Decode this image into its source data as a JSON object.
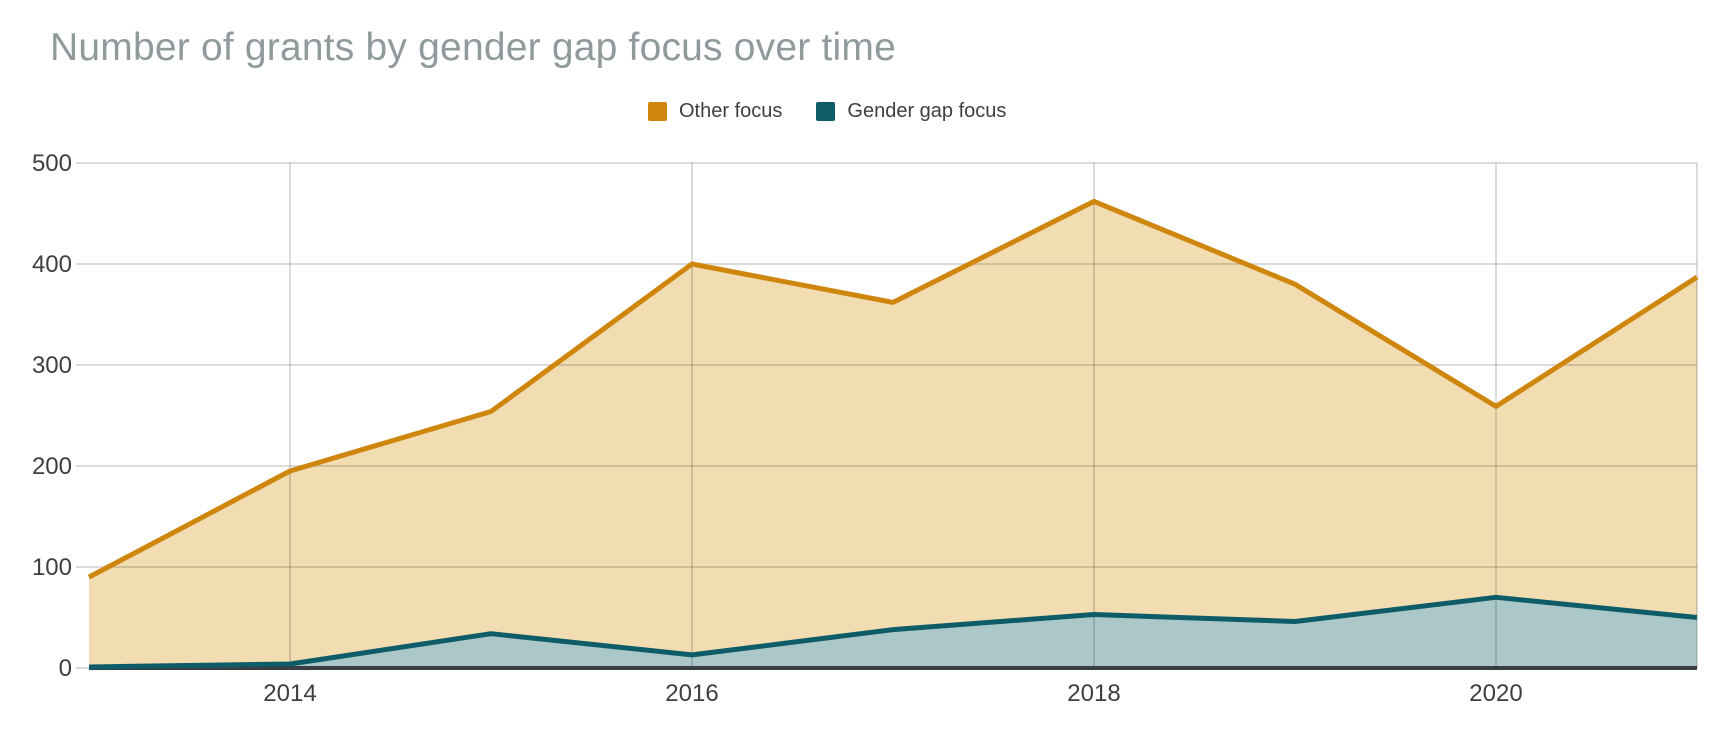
{
  "title": "Number of grants by gender gap focus over time",
  "colors": {
    "title_text": "#909A9C",
    "tick_label_text": "#3C4043",
    "legend_text": "#3C4043",
    "axis_line": "#383E42",
    "gridline": "#DADADA",
    "other_focus_line": "#CE860D",
    "other_focus_fill": "#F2DCB2",
    "gender_gap_line": "#0E5C68",
    "gender_gap_fill": "#ABC7C8"
  },
  "legend": [
    {
      "label": "Other focus",
      "color": "#CE860D"
    },
    {
      "label": "Gender gap focus",
      "color": "#0E5C68"
    }
  ],
  "chart_data": {
    "type": "area",
    "title": "Number of grants by gender gap focus over time",
    "xlabel": "",
    "ylabel": "",
    "x": [
      2013,
      2014,
      2015,
      2016,
      2017,
      2018,
      2019,
      2020,
      2021
    ],
    "series": [
      {
        "name": "Other focus",
        "values": [
          90,
          195,
          254,
          400,
          362,
          462,
          380,
          259,
          387
        ],
        "line_color": "#CE860D",
        "fill_color": "#F2DCB2"
      },
      {
        "name": "Gender gap focus",
        "values": [
          1,
          4,
          34,
          13,
          38,
          53,
          46,
          70,
          50
        ],
        "line_color": "#0E5C68",
        "fill_color": "#ABC7C8"
      }
    ],
    "xlim": [
      2013,
      2021
    ],
    "ylim": [
      0,
      500
    ],
    "xtick_labels": [
      "2014",
      "2016",
      "2018",
      "2020"
    ],
    "xtick_values": [
      2014,
      2016,
      2018,
      2020
    ],
    "ytick_labels": [
      "0",
      "100",
      "200",
      "300",
      "400",
      "500"
    ],
    "ytick_values": [
      0,
      100,
      200,
      300,
      400,
      500
    ],
    "grid": true,
    "legend_position": "top"
  }
}
